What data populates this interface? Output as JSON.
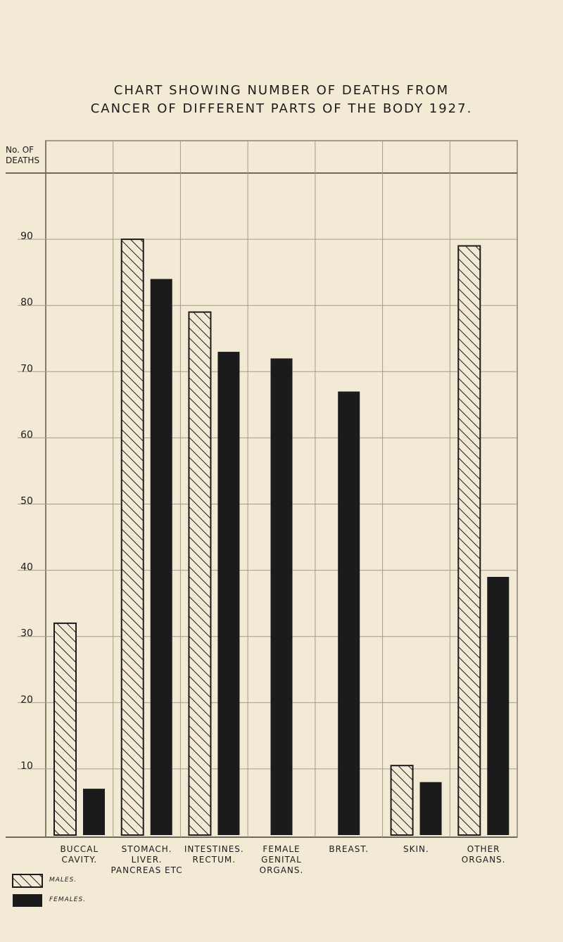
{
  "chart_data": {
    "type": "bar",
    "title": [
      "CHART SHOWING NUMBER OF DEATHS FROM",
      "CANCER OF DIFFERENT PARTS OF THE BODY 1927."
    ],
    "y_axis_label": "No. OF DEATHS",
    "categories": [
      "BUCCAL CAVITY.",
      "STOMACH. LIVER. PANCREAS ETC",
      "INTESTINES. RECTUM.",
      "FEMALE GENITAL ORGANS.",
      "BREAST.",
      "SKIN.",
      "OTHER ORGANS."
    ],
    "series": [
      {
        "name": "MALES.",
        "color": "#1b1b1b",
        "pattern": "hatch",
        "values": [
          32,
          90,
          79,
          null,
          null,
          10.5,
          89
        ]
      },
      {
        "name": "FEMALES.",
        "color": "#1b1b1b",
        "pattern": "solid",
        "values": [
          7,
          84,
          73,
          72,
          67,
          8,
          39
        ]
      }
    ],
    "ylim": [
      0,
      100
    ],
    "yticks": [
      10,
      20,
      30,
      40,
      50,
      60,
      70,
      80,
      90
    ],
    "grid": true
  }
}
